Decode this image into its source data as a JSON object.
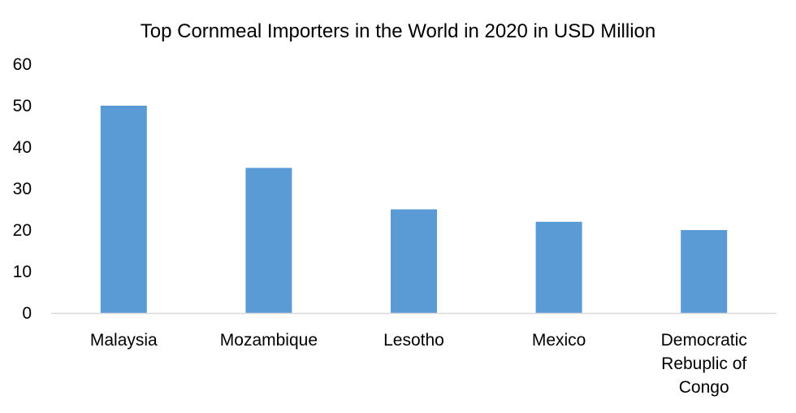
{
  "chart_data": {
    "type": "bar",
    "title": "Top Cornmeal Importers in the World in 2020 in USD Million",
    "categories": [
      [
        "Malaysia"
      ],
      [
        "Mozambique"
      ],
      [
        "Lesotho"
      ],
      [
        "Mexico"
      ],
      [
        "Democratic",
        "Rebuplic of",
        "Congo"
      ]
    ],
    "values": [
      50,
      35,
      25,
      22,
      20
    ],
    "ylim": [
      0,
      60
    ],
    "yticks": [
      0,
      10,
      20,
      30,
      40,
      50,
      60
    ],
    "xlabel": "",
    "ylabel": "",
    "grid": false,
    "legend": "none",
    "bar_color": "#5B9BD5",
    "axis_color": "#D9D9D9"
  }
}
